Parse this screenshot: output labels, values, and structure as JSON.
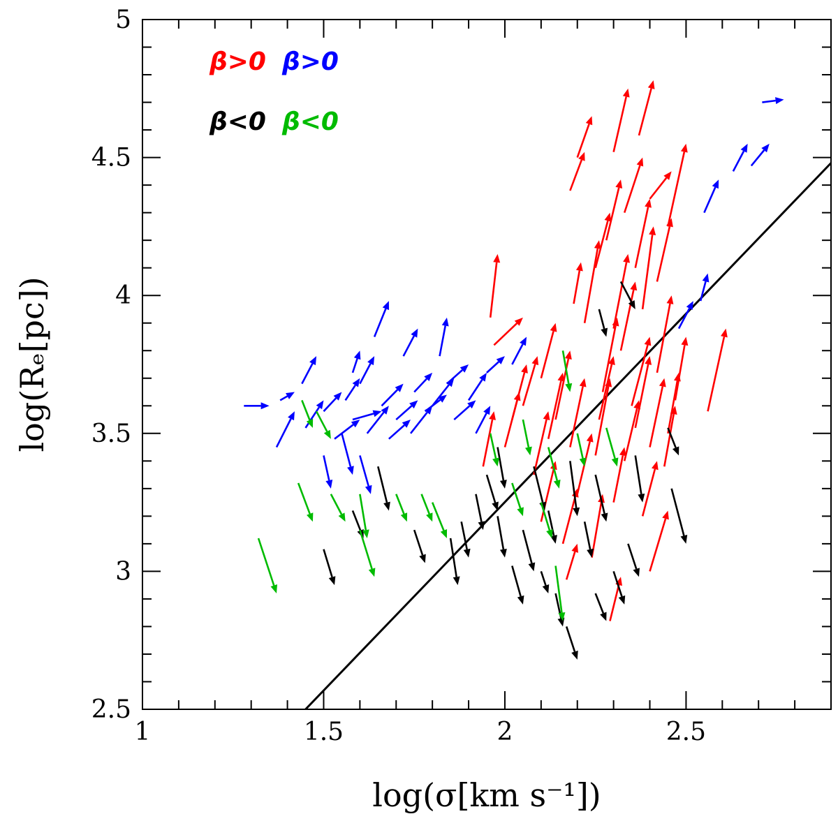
{
  "chart_data": {
    "type": "scatter",
    "title": "",
    "xlabel": "log(σ[km s⁻¹])",
    "ylabel": "log(Rₑ[pc])",
    "xlim": [
      1.0,
      2.9
    ],
    "ylim": [
      2.5,
      5.0
    ],
    "x_ticks": [
      {
        "value": 1.0,
        "label": "1"
      },
      {
        "value": 1.5,
        "label": "1.5"
      },
      {
        "value": 2.0,
        "label": "2"
      },
      {
        "value": 2.5,
        "label": "2.5"
      }
    ],
    "y_ticks": [
      {
        "value": 2.5,
        "label": "2.5"
      },
      {
        "value": 3.0,
        "label": "3"
      },
      {
        "value": 3.5,
        "label": "3.5"
      },
      {
        "value": 4.0,
        "label": "4"
      },
      {
        "value": 4.5,
        "label": "4.5"
      },
      {
        "value": 5.0,
        "label": "5"
      }
    ],
    "legend_placement": "top-left",
    "legend": [
      {
        "label": "β>0",
        "color": "#ff0000",
        "row": 0
      },
      {
        "label": "β>0",
        "color": "#0000ff",
        "row": 0
      },
      {
        "label": "β<0",
        "color": "#000000",
        "row": 1
      },
      {
        "label": "β<0",
        "color": "#00bb00",
        "row": 1
      }
    ],
    "reference_line": {
      "color": "#000000",
      "points": [
        [
          1.45,
          2.5
        ],
        [
          2.9,
          4.48
        ]
      ]
    },
    "series": [
      {
        "name": "red β>0",
        "color": "#ff0000",
        "arrows": [
          [
            2.3,
            4.52,
            2.34,
            4.75
          ],
          [
            2.37,
            4.58,
            2.41,
            4.78
          ],
          [
            2.18,
            4.38,
            2.22,
            4.52
          ],
          [
            2.2,
            4.5,
            2.24,
            4.65
          ],
          [
            2.4,
            4.35,
            2.46,
            4.45
          ],
          [
            2.33,
            4.3,
            2.38,
            4.5
          ],
          [
            2.45,
            4.25,
            2.5,
            4.55
          ],
          [
            2.28,
            4.2,
            2.32,
            4.42
          ],
          [
            2.36,
            4.1,
            2.4,
            4.35
          ],
          [
            2.25,
            4.1,
            2.29,
            4.3
          ],
          [
            2.42,
            4.05,
            2.46,
            4.28
          ],
          [
            1.96,
            3.92,
            1.98,
            4.15
          ],
          [
            1.97,
            3.82,
            2.05,
            3.92
          ],
          [
            2.19,
            3.97,
            2.21,
            4.12
          ],
          [
            2.22,
            3.9,
            2.26,
            4.2
          ],
          [
            2.3,
            3.88,
            2.34,
            4.15
          ],
          [
            2.38,
            3.95,
            2.41,
            4.25
          ],
          [
            2.32,
            3.8,
            2.36,
            4.05
          ],
          [
            2.42,
            3.72,
            2.46,
            4.0
          ],
          [
            2.47,
            3.62,
            2.5,
            3.85
          ],
          [
            2.56,
            3.58,
            2.61,
            3.88
          ],
          [
            2.27,
            3.65,
            2.31,
            3.92
          ],
          [
            2.35,
            3.6,
            2.4,
            3.85
          ],
          [
            2.1,
            3.7,
            2.14,
            3.9
          ],
          [
            2.14,
            3.55,
            2.18,
            3.8
          ],
          [
            2.05,
            3.6,
            2.09,
            3.78
          ],
          [
            2.18,
            3.45,
            2.22,
            3.7
          ],
          [
            2.25,
            3.42,
            2.29,
            3.7
          ],
          [
            2.33,
            3.4,
            2.37,
            3.62
          ],
          [
            2.4,
            3.45,
            2.44,
            3.7
          ],
          [
            2.45,
            3.5,
            2.48,
            3.72
          ],
          [
            1.94,
            3.38,
            1.97,
            3.58
          ],
          [
            2.0,
            3.45,
            2.04,
            3.65
          ],
          [
            2.08,
            3.35,
            2.12,
            3.58
          ],
          [
            2.2,
            3.28,
            2.24,
            3.5
          ],
          [
            2.3,
            3.25,
            2.33,
            3.45
          ],
          [
            2.38,
            3.2,
            2.42,
            3.4
          ],
          [
            2.1,
            3.18,
            2.14,
            3.4
          ],
          [
            2.16,
            3.1,
            2.2,
            3.3
          ],
          [
            2.24,
            3.05,
            2.27,
            3.28
          ],
          [
            2.4,
            3.0,
            2.45,
            3.22
          ],
          [
            2.17,
            2.97,
            2.2,
            3.1
          ],
          [
            2.29,
            2.82,
            2.32,
            2.98
          ],
          [
            2.02,
            3.55,
            2.06,
            3.75
          ],
          [
            2.12,
            3.48,
            2.16,
            3.72
          ],
          [
            2.26,
            3.55,
            2.3,
            3.78
          ],
          [
            2.36,
            3.52,
            2.4,
            3.78
          ],
          [
            2.44,
            3.38,
            2.47,
            3.6
          ]
        ]
      },
      {
        "name": "blue β>0",
        "color": "#0000ff",
        "arrows": [
          [
            2.71,
            4.7,
            2.77,
            4.71
          ],
          [
            2.55,
            4.3,
            2.59,
            4.42
          ],
          [
            2.63,
            4.45,
            2.67,
            4.55
          ],
          [
            2.68,
            4.47,
            2.73,
            4.55
          ],
          [
            2.48,
            3.88,
            2.52,
            3.98
          ],
          [
            2.54,
            3.98,
            2.56,
            4.08
          ],
          [
            1.28,
            3.6,
            1.35,
            3.6
          ],
          [
            1.38,
            3.62,
            1.42,
            3.65
          ],
          [
            1.37,
            3.45,
            1.42,
            3.58
          ],
          [
            1.45,
            3.52,
            1.5,
            3.62
          ],
          [
            1.5,
            3.58,
            1.55,
            3.65
          ],
          [
            1.53,
            3.48,
            1.6,
            3.55
          ],
          [
            1.58,
            3.55,
            1.66,
            3.58
          ],
          [
            1.62,
            3.5,
            1.68,
            3.6
          ],
          [
            1.66,
            3.6,
            1.72,
            3.68
          ],
          [
            1.7,
            3.55,
            1.76,
            3.62
          ],
          [
            1.75,
            3.65,
            1.8,
            3.72
          ],
          [
            1.8,
            3.6,
            1.86,
            3.7
          ],
          [
            1.84,
            3.68,
            1.9,
            3.75
          ],
          [
            1.9,
            3.62,
            1.95,
            3.72
          ],
          [
            1.95,
            3.72,
            2.0,
            3.78
          ],
          [
            2.02,
            3.75,
            2.06,
            3.85
          ],
          [
            1.64,
            3.85,
            1.68,
            3.98
          ],
          [
            1.58,
            3.72,
            1.6,
            3.8
          ],
          [
            1.5,
            3.42,
            1.52,
            3.3
          ],
          [
            1.55,
            3.5,
            1.58,
            3.35
          ],
          [
            1.6,
            3.42,
            1.63,
            3.28
          ],
          [
            1.44,
            3.68,
            1.48,
            3.78
          ],
          [
            1.72,
            3.78,
            1.76,
            3.88
          ],
          [
            1.82,
            3.78,
            1.84,
            3.92
          ],
          [
            1.56,
            3.62,
            1.6,
            3.7
          ],
          [
            1.6,
            3.68,
            1.64,
            3.78
          ],
          [
            1.68,
            3.48,
            1.74,
            3.55
          ],
          [
            1.74,
            3.5,
            1.8,
            3.6
          ],
          [
            1.78,
            3.58,
            1.84,
            3.64
          ],
          [
            1.86,
            3.55,
            1.92,
            3.62
          ],
          [
            1.92,
            3.5,
            1.96,
            3.6
          ]
        ]
      },
      {
        "name": "black β<0",
        "color": "#000000",
        "arrows": [
          [
            1.5,
            3.08,
            1.53,
            2.95
          ],
          [
            1.58,
            3.22,
            1.61,
            3.12
          ],
          [
            1.65,
            3.38,
            1.68,
            3.22
          ],
          [
            1.75,
            3.15,
            1.78,
            3.03
          ],
          [
            1.85,
            3.12,
            1.87,
            2.95
          ],
          [
            1.88,
            3.18,
            1.9,
            3.05
          ],
          [
            1.98,
            3.2,
            2.0,
            3.05
          ],
          [
            2.05,
            3.15,
            2.08,
            3.0
          ],
          [
            2.1,
            3.0,
            2.12,
            2.92
          ],
          [
            2.17,
            2.8,
            2.2,
            2.68
          ],
          [
            2.25,
            2.92,
            2.28,
            2.82
          ],
          [
            2.3,
            3.0,
            2.33,
            2.88
          ],
          [
            2.34,
            3.1,
            2.37,
            2.98
          ],
          [
            2.02,
            3.02,
            2.05,
            2.88
          ],
          [
            2.14,
            2.92,
            2.16,
            2.8
          ],
          [
            2.46,
            3.3,
            2.5,
            3.1
          ],
          [
            2.18,
            3.4,
            2.2,
            3.2
          ],
          [
            2.25,
            3.35,
            2.28,
            3.18
          ],
          [
            2.36,
            3.42,
            2.38,
            3.25
          ],
          [
            2.32,
            4.05,
            2.36,
            3.95
          ],
          [
            2.26,
            3.95,
            2.28,
            3.85
          ],
          [
            1.98,
            3.45,
            2.0,
            3.3
          ],
          [
            2.08,
            3.38,
            2.11,
            3.22
          ],
          [
            2.45,
            3.52,
            2.48,
            3.42
          ],
          [
            1.92,
            3.28,
            1.94,
            3.15
          ],
          [
            2.12,
            3.22,
            2.14,
            3.1
          ],
          [
            2.22,
            3.18,
            2.24,
            3.05
          ],
          [
            1.95,
            3.35,
            1.98,
            3.22
          ]
        ]
      },
      {
        "name": "green β<0",
        "color": "#00bb00",
        "arrows": [
          [
            1.32,
            3.12,
            1.37,
            2.92
          ],
          [
            1.43,
            3.32,
            1.47,
            3.18
          ],
          [
            1.52,
            3.28,
            1.56,
            3.18
          ],
          [
            1.6,
            3.28,
            1.62,
            3.12
          ],
          [
            1.7,
            3.28,
            1.73,
            3.18
          ],
          [
            1.8,
            3.25,
            1.84,
            3.12
          ],
          [
            1.77,
            3.28,
            1.8,
            3.18
          ],
          [
            1.6,
            3.15,
            1.64,
            2.98
          ],
          [
            2.14,
            3.02,
            2.16,
            2.82
          ],
          [
            1.44,
            3.62,
            1.47,
            3.52
          ],
          [
            1.48,
            3.58,
            1.52,
            3.48
          ],
          [
            1.96,
            3.5,
            1.98,
            3.38
          ],
          [
            2.05,
            3.55,
            2.07,
            3.42
          ],
          [
            2.12,
            3.45,
            2.15,
            3.3
          ],
          [
            2.2,
            3.5,
            2.22,
            3.38
          ],
          [
            2.28,
            3.52,
            2.31,
            3.38
          ],
          [
            2.16,
            3.8,
            2.18,
            3.65
          ],
          [
            2.02,
            3.32,
            2.05,
            3.2
          ],
          [
            2.1,
            3.25,
            2.13,
            3.12
          ]
        ]
      }
    ]
  }
}
